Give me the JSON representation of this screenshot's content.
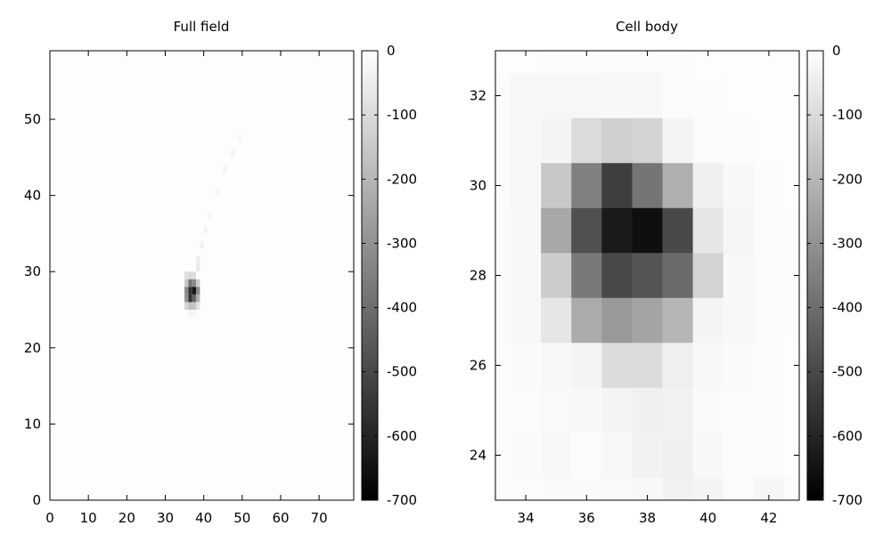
{
  "chart_data": [
    {
      "type": "heatmap",
      "title": "Full field",
      "xlim": [
        0,
        79
      ],
      "ylim": [
        0,
        59
      ],
      "xticks": [
        0,
        10,
        20,
        30,
        40,
        50,
        60,
        70
      ],
      "yticks": [
        0,
        10,
        20,
        30,
        40,
        50
      ],
      "colorbar": {
        "min": -700,
        "max": 0,
        "ticks": [
          0,
          -100,
          -200,
          -300,
          -400,
          -500,
          -600,
          -700
        ]
      },
      "background_value": -5,
      "cells": [
        [
          35,
          29,
          -90
        ],
        [
          36,
          29,
          -110
        ],
        [
          37,
          29,
          -90
        ],
        [
          35,
          28,
          -150
        ],
        [
          36,
          28,
          -380
        ],
        [
          37,
          28,
          -320
        ],
        [
          38,
          28,
          -150
        ],
        [
          35,
          27,
          -320
        ],
        [
          36,
          27,
          -560
        ],
        [
          37,
          27,
          -640
        ],
        [
          38,
          27,
          -330
        ],
        [
          35,
          26,
          -300
        ],
        [
          36,
          26,
          -560
        ],
        [
          37,
          26,
          -420
        ],
        [
          38,
          26,
          -220
        ],
        [
          35,
          25,
          -120
        ],
        [
          36,
          25,
          -180
        ],
        [
          37,
          25,
          -160
        ],
        [
          38,
          25,
          -80
        ],
        [
          36,
          24,
          -30
        ],
        [
          37,
          24,
          -25
        ],
        [
          38,
          30,
          -60
        ],
        [
          38,
          31,
          -50
        ],
        [
          39,
          33,
          -35
        ],
        [
          40,
          35,
          -30
        ],
        [
          41,
          37,
          -25
        ],
        [
          43,
          40,
          -25
        ],
        [
          45,
          43,
          -30
        ],
        [
          47,
          45,
          -30
        ],
        [
          49,
          47,
          -25
        ]
      ]
    },
    {
      "type": "heatmap",
      "title": "Cell body",
      "xlim": [
        33,
        43
      ],
      "ylim": [
        23,
        33
      ],
      "xticks": [
        34,
        36,
        38,
        40,
        42
      ],
      "yticks": [
        24,
        26,
        28,
        30,
        32
      ],
      "colorbar": {
        "min": -700,
        "max": 0,
        "ticks": [
          0,
          -100,
          -200,
          -300,
          -400,
          -500,
          -600,
          -700
        ]
      },
      "background_value": 0,
      "x_edges": [
        33,
        33.5,
        34.5,
        35.5,
        36.5,
        37.5,
        38.5,
        39.5,
        40.5,
        41.5,
        42.5,
        43
      ],
      "y_edges": [
        23,
        23.5,
        24.5,
        25.5,
        26.5,
        27.5,
        28.5,
        29.5,
        30.5,
        31.5,
        32.5,
        33
      ],
      "grid": [
        [
          -5,
          -5,
          -8,
          -8,
          -10,
          -10,
          -8,
          -5,
          -5,
          -5,
          -5
        ],
        [
          -8,
          -18,
          -22,
          -22,
          -18,
          -18,
          -12,
          -8,
          -5,
          -5,
          -5
        ],
        [
          -8,
          -18,
          -30,
          -100,
          -130,
          -120,
          -30,
          -12,
          -8,
          -5,
          -5
        ],
        [
          -8,
          -18,
          -150,
          -350,
          -530,
          -380,
          -220,
          -40,
          -18,
          -8,
          -5
        ],
        [
          -10,
          -18,
          -240,
          -480,
          -630,
          -660,
          -500,
          -70,
          -25,
          -12,
          -8
        ],
        [
          -10,
          -18,
          -140,
          -370,
          -500,
          -470,
          -410,
          -120,
          -20,
          -12,
          -8
        ],
        [
          -10,
          -18,
          -70,
          -230,
          -280,
          -250,
          -200,
          -30,
          -18,
          -12,
          -8
        ],
        [
          -10,
          -14,
          -18,
          -30,
          -95,
          -95,
          -45,
          -18,
          -14,
          -8,
          -5
        ],
        [
          -12,
          -12,
          -16,
          -18,
          -30,
          -40,
          -35,
          -14,
          -12,
          -8,
          -5
        ],
        [
          -12,
          -14,
          -18,
          -12,
          -18,
          -35,
          -40,
          -20,
          -12,
          -12,
          -5
        ],
        [
          -12,
          -12,
          -14,
          -15,
          -16,
          -20,
          -35,
          -30,
          -12,
          -25,
          -12
        ]
      ]
    }
  ]
}
